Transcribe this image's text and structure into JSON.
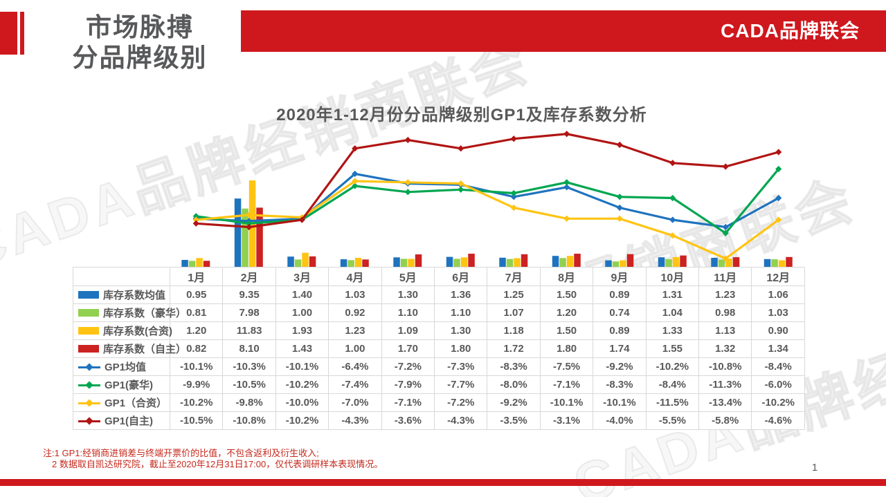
{
  "slide": {
    "header": {
      "title_line1": "市场脉搏",
      "title_line2": "分品牌级别",
      "banner_text": "CADA品牌联会"
    },
    "accent_color": "#CE181E",
    "chart_title": "2020年1-12月份分品牌级别GP1及库存系数分析",
    "watermark_text": "CADA品牌经销商联会",
    "notes": [
      "注:1  GP1:经销商进销差与终端开票价的比值，不包含返利及衍生收入;",
      "2 数据取自凯达研究院，截止至2020年12月31日17:00，仅代表调研样本表现情况。"
    ],
    "page_number": "1"
  },
  "chart_data": {
    "type": "combo-bar-line",
    "title": "2020年1-12月份分品牌级别GP1及库存系数分析",
    "categories": [
      "1月",
      "2月",
      "3月",
      "4月",
      "5月",
      "6月",
      "7月",
      "8月",
      "9月",
      "10月",
      "11月",
      "12月"
    ],
    "bar_value_format": "0.00",
    "line_value_format": "-0.0%",
    "legend_position": "table-left-column",
    "grid": false,
    "bar_axis_hidden": true,
    "line_axis_hidden": true,
    "bar_series": [
      {
        "name": "库存系数均值",
        "color": "#1E73BE",
        "values": [
          0.95,
          9.35,
          1.4,
          1.03,
          1.3,
          1.36,
          1.25,
          1.5,
          0.89,
          1.31,
          1.23,
          1.06
        ]
      },
      {
        "name": "库存系数（豪华）",
        "color": "#92D050",
        "values": [
          0.81,
          7.98,
          1.0,
          0.92,
          1.1,
          1.1,
          1.07,
          1.2,
          0.74,
          1.04,
          0.98,
          1.03
        ]
      },
      {
        "name": "库存系数(合资)",
        "color": "#FFC413",
        "values": [
          1.2,
          11.83,
          1.93,
          1.23,
          1.09,
          1.3,
          1.18,
          1.5,
          0.89,
          1.33,
          1.13,
          0.9
        ]
      },
      {
        "name": "库存系数（自主）",
        "color": "#CC2222",
        "values": [
          0.82,
          8.1,
          1.43,
          1.0,
          1.7,
          1.8,
          1.72,
          1.8,
          1.74,
          1.55,
          1.32,
          1.34
        ]
      }
    ],
    "line_series": [
      {
        "name": "GP1均值",
        "color": "#1E73BE",
        "values": [
          -10.1,
          -10.3,
          -10.1,
          -6.4,
          -7.2,
          -7.3,
          -8.3,
          -7.5,
          -9.2,
          -10.2,
          -10.8,
          -8.4
        ]
      },
      {
        "name": "GP1(豪华)",
        "color": "#00A651",
        "values": [
          -9.9,
          -10.5,
          -10.2,
          -7.4,
          -7.9,
          -7.7,
          -8.0,
          -7.1,
          -8.3,
          -8.4,
          -11.3,
          -6.0
        ]
      },
      {
        "name": "GP1（合资）",
        "color": "#FFC413",
        "values": [
          -10.2,
          -9.8,
          -10.0,
          -7.0,
          -7.1,
          -7.2,
          -9.2,
          -10.1,
          -10.1,
          -11.5,
          -13.4,
          -10.2
        ]
      },
      {
        "name": "GP1(自主)",
        "color": "#B01513",
        "values": [
          -10.5,
          -10.8,
          -10.2,
          -4.3,
          -3.6,
          -4.3,
          -3.5,
          -3.1,
          -4.0,
          -5.5,
          -5.8,
          -4.6
        ]
      }
    ]
  }
}
